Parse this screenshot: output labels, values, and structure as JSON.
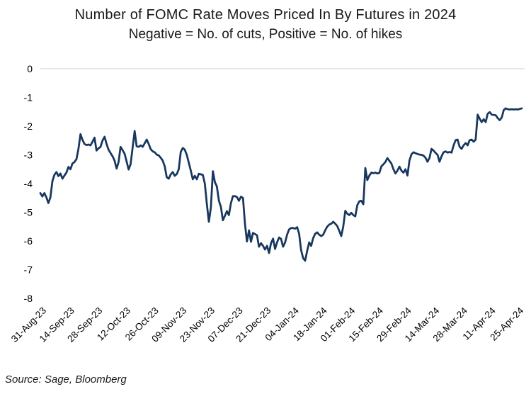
{
  "chart_data": {
    "type": "line",
    "title": "Number of FOMC Rate Moves Priced In By Futures in 2024",
    "subtitle": "Negative = No. of cuts, Positive = No. of hikes",
    "source": "Source: Sage, Bloomberg",
    "x_axis": {
      "unit": "date",
      "tick_interval_days": 14,
      "tick_label_rotation_deg": 45,
      "tick_labels": [
        "31-Aug-23",
        "14-Sep-23",
        "28-Sep-23",
        "12-Oct-23",
        "26-Oct-23",
        "09-Nov-23",
        "23-Nov-23",
        "07-Dec-23",
        "21-Dec-23",
        "04-Jan-24",
        "18-Jan-24",
        "01-Feb-24",
        "15-Feb-24",
        "29-Feb-24",
        "14-Mar-24",
        "28-Mar-24",
        "11-Apr-24",
        "25-Apr-24"
      ]
    },
    "y_axis": {
      "ticks": [
        0,
        -1,
        -2,
        -3,
        -4,
        -5,
        -6,
        -7,
        -8
      ],
      "tick_labels": [
        "0",
        "-1",
        "-2",
        "-3",
        "-4",
        "-5",
        "-6",
        "-7",
        "-8"
      ],
      "range": [
        -8,
        0
      ],
      "gridlines": "horizontal line at 0 only"
    },
    "series": [
      {
        "name": "FOMC rate moves priced in",
        "color": "#17375E",
        "x_encoding": "days since first tick (31-Aug-23)",
        "points": [
          [
            0,
            -4.33
          ],
          [
            1,
            -4.45
          ],
          [
            2,
            -4.33
          ],
          [
            3,
            -4.48
          ],
          [
            4,
            -4.68
          ],
          [
            5,
            -4.48
          ],
          [
            6,
            -3.92
          ],
          [
            7,
            -3.7
          ],
          [
            8,
            -3.6
          ],
          [
            9,
            -3.74
          ],
          [
            10,
            -3.65
          ],
          [
            11,
            -3.83
          ],
          [
            12,
            -3.72
          ],
          [
            13,
            -3.62
          ],
          [
            14,
            -3.42
          ],
          [
            15,
            -3.5
          ],
          [
            16,
            -3.3
          ],
          [
            17,
            -3.25
          ],
          [
            18,
            -3.15
          ],
          [
            19,
            -2.79
          ],
          [
            20,
            -2.28
          ],
          [
            21,
            -2.48
          ],
          [
            22,
            -2.62
          ],
          [
            23,
            -2.66
          ],
          [
            24,
            -2.64
          ],
          [
            25,
            -2.67
          ],
          [
            26,
            -2.54
          ],
          [
            27,
            -2.4
          ],
          [
            28,
            -2.85
          ],
          [
            29,
            -2.77
          ],
          [
            30,
            -2.72
          ],
          [
            31,
            -2.5
          ],
          [
            32,
            -2.37
          ],
          [
            33,
            -2.62
          ],
          [
            34,
            -2.82
          ],
          [
            35,
            -2.94
          ],
          [
            36,
            -3.05
          ],
          [
            37,
            -3.2
          ],
          [
            38,
            -3.48
          ],
          [
            39,
            -3.25
          ],
          [
            40,
            -2.72
          ],
          [
            41,
            -2.84
          ],
          [
            42,
            -2.96
          ],
          [
            43,
            -3.23
          ],
          [
            44,
            -3.51
          ],
          [
            45,
            -3.32
          ],
          [
            46,
            -2.75
          ],
          [
            47,
            -2.17
          ],
          [
            48,
            -2.7
          ],
          [
            49,
            -2.72
          ],
          [
            50,
            -2.67
          ],
          [
            51,
            -2.72
          ],
          [
            52,
            -2.6
          ],
          [
            53,
            -2.47
          ],
          [
            54,
            -2.62
          ],
          [
            55,
            -2.8
          ],
          [
            56,
            -2.88
          ],
          [
            57,
            -2.91
          ],
          [
            58,
            -2.99
          ],
          [
            59,
            -3.02
          ],
          [
            60,
            -3.1
          ],
          [
            61,
            -3.2
          ],
          [
            62,
            -3.4
          ],
          [
            63,
            -3.78
          ],
          [
            64,
            -3.83
          ],
          [
            65,
            -3.68
          ],
          [
            66,
            -3.6
          ],
          [
            67,
            -3.73
          ],
          [
            68,
            -3.67
          ],
          [
            69,
            -3.5
          ],
          [
            70,
            -2.9
          ],
          [
            71,
            -2.76
          ],
          [
            72,
            -2.82
          ],
          [
            73,
            -3.0
          ],
          [
            74,
            -3.28
          ],
          [
            75,
            -3.55
          ],
          [
            76,
            -3.85
          ],
          [
            77,
            -3.73
          ],
          [
            78,
            -3.85
          ],
          [
            79,
            -3.66
          ],
          [
            80,
            -3.68
          ],
          [
            81,
            -3.7
          ],
          [
            82,
            -4.0
          ],
          [
            83,
            -4.72
          ],
          [
            84,
            -5.33
          ],
          [
            85,
            -4.85
          ],
          [
            86,
            -3.57
          ],
          [
            87,
            -3.95
          ],
          [
            88,
            -4.1
          ],
          [
            89,
            -4.6
          ],
          [
            90,
            -4.81
          ],
          [
            91,
            -5.28
          ],
          [
            92,
            -5.12
          ],
          [
            93,
            -4.96
          ],
          [
            94,
            -5.1
          ],
          [
            95,
            -4.68
          ],
          [
            96,
            -4.44
          ],
          [
            97,
            -4.44
          ],
          [
            98,
            -4.47
          ],
          [
            99,
            -4.6
          ],
          [
            100,
            -4.46
          ],
          [
            101,
            -4.5
          ],
          [
            102,
            -5.4
          ],
          [
            103,
            -6.02
          ],
          [
            104,
            -5.63
          ],
          [
            105,
            -6.03
          ],
          [
            106,
            -5.72
          ],
          [
            107,
            -5.76
          ],
          [
            108,
            -5.8
          ],
          [
            109,
            -6.2
          ],
          [
            110,
            -6.08
          ],
          [
            111,
            -6.17
          ],
          [
            112,
            -6.3
          ],
          [
            113,
            -6.17
          ],
          [
            114,
            -6.42
          ],
          [
            115,
            -6.08
          ],
          [
            116,
            -5.92
          ],
          [
            117,
            -6.28
          ],
          [
            118,
            -6.05
          ],
          [
            119,
            -5.88
          ],
          [
            120,
            -5.93
          ],
          [
            121,
            -6.2
          ],
          [
            122,
            -6.05
          ],
          [
            123,
            -5.78
          ],
          [
            124,
            -5.6
          ],
          [
            125,
            -5.55
          ],
          [
            126,
            -5.55
          ],
          [
            127,
            -5.57
          ],
          [
            128,
            -5.52
          ],
          [
            129,
            -5.75
          ],
          [
            130,
            -6.32
          ],
          [
            131,
            -6.6
          ],
          [
            132,
            -6.69
          ],
          [
            133,
            -6.35
          ],
          [
            134,
            -6.05
          ],
          [
            135,
            -6.17
          ],
          [
            136,
            -5.9
          ],
          [
            137,
            -5.75
          ],
          [
            138,
            -5.7
          ],
          [
            139,
            -5.78
          ],
          [
            140,
            -5.83
          ],
          [
            141,
            -5.78
          ],
          [
            142,
            -5.63
          ],
          [
            143,
            -5.5
          ],
          [
            144,
            -5.43
          ],
          [
            145,
            -5.4
          ],
          [
            146,
            -5.33
          ],
          [
            147,
            -5.4
          ],
          [
            148,
            -5.48
          ],
          [
            149,
            -5.65
          ],
          [
            150,
            -5.83
          ],
          [
            151,
            -5.5
          ],
          [
            152,
            -4.95
          ],
          [
            153,
            -5.05
          ],
          [
            154,
            -5.1
          ],
          [
            155,
            -5.02
          ],
          [
            156,
            -5.1
          ],
          [
            157,
            -5.14
          ],
          [
            158,
            -4.75
          ],
          [
            159,
            -4.62
          ],
          [
            160,
            -4.6
          ],
          [
            161,
            -4.72
          ],
          [
            162,
            -3.46
          ],
          [
            163,
            -3.88
          ],
          [
            164,
            -3.72
          ],
          [
            165,
            -3.62
          ],
          [
            166,
            -3.64
          ],
          [
            167,
            -3.62
          ],
          [
            168,
            -3.65
          ],
          [
            169,
            -3.63
          ],
          [
            170,
            -3.4
          ],
          [
            171,
            -3.33
          ],
          [
            172,
            -3.25
          ],
          [
            173,
            -3.11
          ],
          [
            174,
            -3.21
          ],
          [
            175,
            -3.3
          ],
          [
            176,
            -3.5
          ],
          [
            177,
            -3.65
          ],
          [
            178,
            -3.55
          ],
          [
            179,
            -3.41
          ],
          [
            180,
            -3.55
          ],
          [
            181,
            -3.62
          ],
          [
            182,
            -3.5
          ],
          [
            183,
            -3.72
          ],
          [
            184,
            -3.2
          ],
          [
            185,
            -2.98
          ],
          [
            186,
            -2.91
          ],
          [
            187,
            -2.94
          ],
          [
            188,
            -2.97
          ],
          [
            189,
            -2.99
          ],
          [
            190,
            -3.0
          ],
          [
            191,
            -3.03
          ],
          [
            192,
            -3.1
          ],
          [
            193,
            -3.24
          ],
          [
            194,
            -3.1
          ],
          [
            195,
            -2.79
          ],
          [
            196,
            -2.85
          ],
          [
            197,
            -2.93
          ],
          [
            198,
            -3.0
          ],
          [
            199,
            -3.24
          ],
          [
            200,
            -3.05
          ],
          [
            201,
            -2.91
          ],
          [
            202,
            -2.88
          ],
          [
            203,
            -2.92
          ],
          [
            204,
            -2.9
          ],
          [
            205,
            -2.92
          ],
          [
            206,
            -2.67
          ],
          [
            207,
            -2.49
          ],
          [
            208,
            -2.47
          ],
          [
            209,
            -2.72
          ],
          [
            210,
            -2.79
          ],
          [
            211,
            -2.67
          ],
          [
            212,
            -2.59
          ],
          [
            213,
            -2.67
          ],
          [
            214,
            -2.49
          ],
          [
            215,
            -2.47
          ],
          [
            216,
            -2.54
          ],
          [
            217,
            -2.47
          ],
          [
            218,
            -1.6
          ],
          [
            219,
            -1.74
          ],
          [
            220,
            -1.86
          ],
          [
            221,
            -1.76
          ],
          [
            222,
            -1.86
          ],
          [
            223,
            -1.57
          ],
          [
            224,
            -1.51
          ],
          [
            225,
            -1.6
          ],
          [
            226,
            -1.61
          ],
          [
            227,
            -1.62
          ],
          [
            228,
            -1.72
          ],
          [
            229,
            -1.79
          ],
          [
            230,
            -1.7
          ],
          [
            231,
            -1.44
          ],
          [
            232,
            -1.38
          ],
          [
            233,
            -1.41
          ],
          [
            234,
            -1.42
          ],
          [
            235,
            -1.41
          ],
          [
            236,
            -1.42
          ],
          [
            237,
            -1.41
          ],
          [
            238,
            -1.42
          ],
          [
            239,
            -1.4
          ],
          [
            240,
            -1.38
          ]
        ]
      }
    ]
  },
  "colors": {
    "background": "#FFFFFF",
    "gridline": "#D9D9D9",
    "text": "#000000",
    "line": "#17375E"
  }
}
